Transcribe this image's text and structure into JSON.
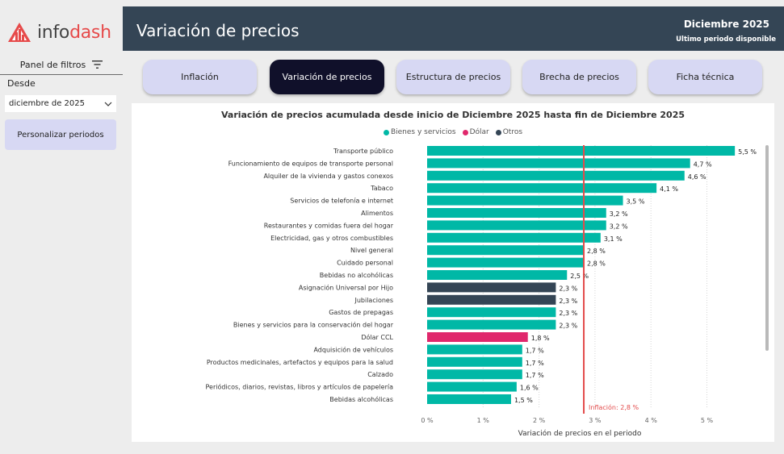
{
  "logo": {
    "text_main": "info",
    "text_accent": "dash"
  },
  "sidebar": {
    "filters_title": "Panel de filtros",
    "from_label": "Desde",
    "from_value": "diciembre de 2025",
    "custom_button": "Personalizar periodos"
  },
  "header": {
    "title": "Variación de precios",
    "period": "Diciembre 2025",
    "period_note": "Ultimo periodo disponible"
  },
  "tabs": [
    {
      "label": "Inflación",
      "active": false
    },
    {
      "label": "Variación de precios",
      "active": true
    },
    {
      "label": "Estructura de precios",
      "active": false
    },
    {
      "label": "Brecha de precios",
      "active": false
    },
    {
      "label": "Ficha técnica",
      "active": false
    }
  ],
  "colors": {
    "bienes": "#00b8a6",
    "dolar": "#e0286c",
    "otros": "#344555",
    "inflation_line": "#e34b4b"
  },
  "chart_data": {
    "type": "bar",
    "orientation": "horizontal",
    "title": "Variación de precios acumulada desde inicio de Diciembre 2025 hasta fin de Diciembre 2025",
    "xlabel": "Variación de precios en el periodo",
    "xlim": [
      0,
      5.5
    ],
    "xticks": [
      0,
      1,
      2,
      3,
      4,
      5
    ],
    "xtick_labels": [
      "0 %",
      "1 %",
      "2 %",
      "3 %",
      "4 %",
      "5 %"
    ],
    "grid": "vertical-dotted",
    "legend_position": "top-center",
    "legend": [
      {
        "name": "Bienes y servicios",
        "group": "bienes"
      },
      {
        "name": "Dólar",
        "group": "dolar"
      },
      {
        "name": "Otros",
        "group": "otros"
      }
    ],
    "reference_line": {
      "label": "Inflación: 2,8 %",
      "value": 2.8
    },
    "categories": [
      "Transporte público",
      "Funcionamiento de equipos de transporte personal",
      "Alquiler de la vivienda y gastos conexos",
      "Tabaco",
      "Servicios de telefonía e internet",
      "Alimentos",
      "Restaurantes y comidas fuera del hogar",
      "Electricidad, gas y otros combustibles",
      "Nivel general",
      "Cuidado personal",
      "Bebidas no alcohólicas",
      "Asignación Universal por Hijo",
      "Jubilaciones",
      "Gastos de prepagas",
      "Bienes y servicios para la conservación del hogar",
      "Dólar CCL",
      "Adquisición de vehículos",
      "Productos medicinales, artefactos y equipos para la salud",
      "Calzado",
      "Periódicos, diarios, revistas, libros y artículos de papelería",
      "Bebidas alcohólicas"
    ],
    "values": [
      5.5,
      4.7,
      4.6,
      4.1,
      3.5,
      3.2,
      3.2,
      3.1,
      2.8,
      2.8,
      2.5,
      2.3,
      2.3,
      2.3,
      2.3,
      1.8,
      1.7,
      1.7,
      1.7,
      1.6,
      1.5
    ],
    "value_labels": [
      "5,5 %",
      "4,7 %",
      "4,6 %",
      "4,1 %",
      "3,5 %",
      "3,2 %",
      "3,2 %",
      "3,1 %",
      "2,8 %",
      "2,8 %",
      "2,5 %",
      "2,3 %",
      "2,3 %",
      "2,3 %",
      "2,3 %",
      "1,8 %",
      "1,7 %",
      "1,7 %",
      "1,7 %",
      "1,6 %",
      "1,5 %"
    ],
    "groups": [
      "bienes",
      "bienes",
      "bienes",
      "bienes",
      "bienes",
      "bienes",
      "bienes",
      "bienes",
      "bienes",
      "bienes",
      "bienes",
      "otros",
      "otros",
      "bienes",
      "bienes",
      "dolar",
      "bienes",
      "bienes",
      "bienes",
      "bienes",
      "bienes"
    ]
  }
}
